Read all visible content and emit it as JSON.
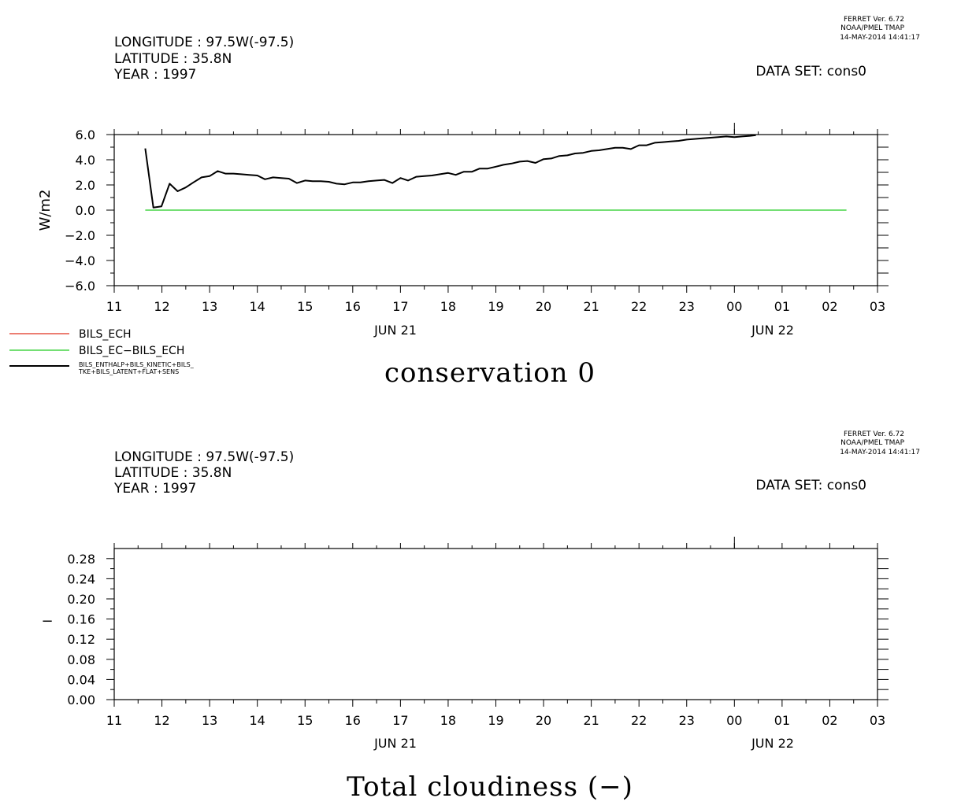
{
  "credits": {
    "line1": "FERRET Ver. 6.72",
    "line2": "NOAA/PMEL TMAP",
    "line3": "14-MAY-2014 14:41:17"
  },
  "header": {
    "longitude": "LONGITUDE : 97.5W(-97.5)",
    "latitude": "LATITUDE : 35.8N",
    "year": "YEAR : 1997",
    "dataset": "DATA SET: cons0"
  },
  "x_ticks": [
    "11",
    "12",
    "13",
    "14",
    "15",
    "16",
    "17",
    "18",
    "19",
    "20",
    "21",
    "22",
    "23",
    "00",
    "01",
    "02",
    "03"
  ],
  "date_labels": [
    "JUN 21",
    "JUN 22"
  ],
  "legend": [
    {
      "label": "BILS_ECH",
      "color": "#e0301e"
    },
    {
      "label": "BILS_EC−BILS_ECH",
      "color": "#22cc22"
    },
    {
      "label_line1": "BILS_ENTHALP+BILS_KINETIC+BILS_",
      "label_line2": "TKE+BILS_LATENT+FLAT+SENS",
      "color": "#000000"
    }
  ],
  "chart_data": [
    {
      "type": "line",
      "title": "conservation 0",
      "xlabel": "",
      "ylabel": "W/m2",
      "ylim": [
        -6.0,
        6.0
      ],
      "yticks": [
        "6.0",
        "4.0",
        "2.0",
        "0.0",
        "−2.0",
        "−4.0",
        "−6.0"
      ],
      "xlim_hours": [
        11,
        27
      ],
      "series": [
        {
          "name": "BILS_EC−BILS_ECH",
          "color": "#22cc22",
          "x": [
            11.65,
            26.35
          ],
          "y": [
            0.0,
            0.0
          ]
        },
        {
          "name": "BILS_ENTHALP+BILS_KINETIC+BILS_TKE+BILS_LATENT+FLAT+SENS",
          "color": "#000000",
          "x": [
            11.65,
            11.82,
            11.99,
            12.16,
            12.33,
            12.5,
            12.66,
            12.83,
            13.0,
            13.17,
            13.33,
            13.5,
            13.66,
            13.83,
            14.0,
            14.16,
            14.33,
            14.5,
            14.66,
            14.83,
            15.0,
            15.16,
            15.33,
            15.5,
            15.66,
            15.83,
            16.0,
            16.16,
            16.33,
            16.5,
            16.66,
            16.83,
            17.0,
            17.16,
            17.33,
            17.5,
            17.66,
            17.83,
            18.0,
            18.16,
            18.33,
            18.5,
            18.66,
            18.83,
            19.0,
            19.16,
            19.33,
            19.5,
            19.66,
            19.83,
            20.0,
            20.16,
            20.33,
            20.5,
            20.66,
            20.83,
            21.0,
            21.16,
            21.33,
            21.5,
            21.66,
            21.83,
            22.0,
            22.16,
            22.33,
            22.5,
            22.66,
            22.83,
            23.0,
            23.16,
            23.33,
            23.5,
            23.66,
            23.83,
            24.0,
            24.16,
            24.33,
            24.45
          ],
          "y": [
            4.9,
            0.2,
            0.3,
            2.1,
            1.5,
            1.8,
            2.2,
            2.6,
            2.7,
            3.1,
            2.9,
            2.9,
            2.85,
            2.8,
            2.75,
            2.45,
            2.6,
            2.55,
            2.5,
            2.15,
            2.35,
            2.3,
            2.3,
            2.25,
            2.1,
            2.05,
            2.2,
            2.2,
            2.3,
            2.35,
            2.4,
            2.15,
            2.55,
            2.35,
            2.65,
            2.7,
            2.75,
            2.85,
            2.95,
            2.8,
            3.05,
            3.05,
            3.3,
            3.3,
            3.45,
            3.6,
            3.7,
            3.85,
            3.9,
            3.75,
            4.05,
            4.1,
            4.3,
            4.35,
            4.5,
            4.55,
            4.7,
            4.75,
            4.85,
            4.95,
            4.95,
            4.85,
            5.15,
            5.15,
            5.35,
            5.4,
            5.45,
            5.5,
            5.6,
            5.65,
            5.7,
            5.75,
            5.8,
            5.85,
            5.8,
            5.85,
            5.9,
            5.95
          ]
        }
      ]
    },
    {
      "type": "line",
      "title": "Total cloudiness (−)",
      "xlabel": "",
      "ylabel": "−",
      "ylim": [
        0.0,
        0.3
      ],
      "yticks": [
        "0.28",
        "0.24",
        "0.20",
        "0.16",
        "0.12",
        "0.08",
        "0.04",
        "0.00"
      ],
      "xlim_hours": [
        11,
        27
      ],
      "series": []
    }
  ]
}
